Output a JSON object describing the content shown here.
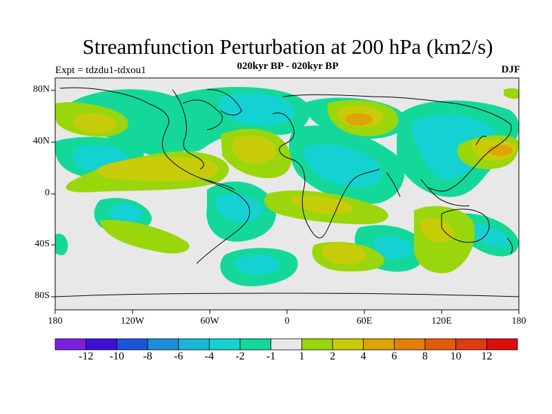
{
  "plot": {
    "title": "Streamfunction Perturbation at 200 hPa (km2/s)",
    "subtitle": "020kyr BP - 020kyr BP",
    "experiment": "Expt = tdzdu1-tdxou1",
    "season": "DJF"
  },
  "axes": {
    "lat_labels": [
      "80N",
      "40N",
      "0",
      "40S",
      "80S"
    ],
    "lon_labels": [
      "180",
      "120W",
      "60W",
      "0",
      "60E",
      "120E",
      "180"
    ]
  },
  "colorbar": {
    "colors": [
      "#7d1fe0",
      "#3c10d8",
      "#1a55d8",
      "#1c8fdc",
      "#18b7d8",
      "#15d2d2",
      "#14d89a",
      "#e8e8e8",
      "#9ad60c",
      "#c8cc08",
      "#dfa406",
      "#e57d08",
      "#e55a08",
      "#e03a10",
      "#e00c0c"
    ],
    "labels": [
      "-12",
      "-10",
      "-8",
      "-6",
      "-4",
      "-2",
      "-1",
      "1",
      "2",
      "4",
      "6",
      "8",
      "10",
      "12"
    ]
  },
  "map_colors": {
    "background": "#e8e8e8",
    "g1": "#14d89a",
    "g2": "#15d2d2",
    "y1": "#9ad60c",
    "y2": "#c8cc08",
    "o1": "#dfa406"
  }
}
